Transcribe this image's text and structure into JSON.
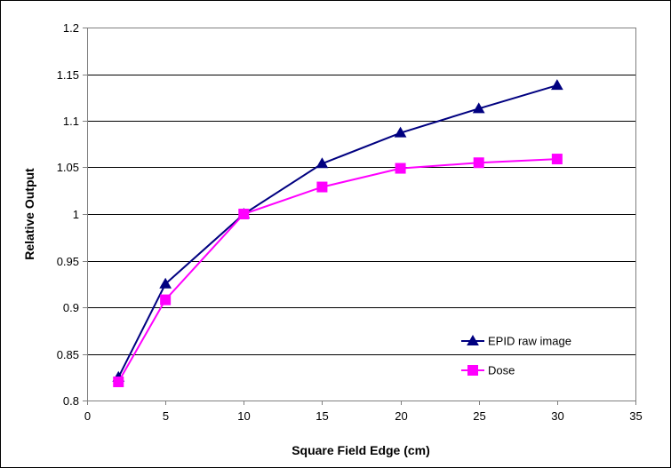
{
  "chart_data": {
    "type": "line",
    "title": "",
    "xlabel": "Square Field Edge (cm)",
    "ylabel": "Relative Output",
    "xlim": [
      0,
      35
    ],
    "ylim": [
      0.8,
      1.2
    ],
    "xticks": [
      0,
      5,
      10,
      15,
      20,
      25,
      30,
      35
    ],
    "yticks": [
      0.8,
      0.85,
      0.9,
      0.95,
      1.0,
      1.05,
      1.1,
      1.15,
      1.2
    ],
    "xtick_labels": [
      "0",
      "5",
      "10",
      "15",
      "20",
      "25",
      "30",
      "35"
    ],
    "ytick_labels": [
      "0.8",
      "0.85",
      "0.9",
      "0.95",
      "1",
      "1.05",
      "1.1",
      "1.15",
      "1.2"
    ],
    "grid": "horizontal",
    "legend_position": "bottom-right",
    "x": [
      2,
      5,
      10,
      15,
      20,
      25,
      30
    ],
    "series": [
      {
        "name": "EPID raw image",
        "marker": "triangle",
        "color": "#000080",
        "values": [
          0.825,
          0.925,
          1.0,
          1.054,
          1.087,
          1.113,
          1.138
        ]
      },
      {
        "name": "Dose",
        "marker": "square",
        "color": "#ff00ff",
        "values": [
          0.82,
          0.908,
          1.0,
          1.029,
          1.049,
          1.055,
          1.059
        ]
      }
    ]
  }
}
